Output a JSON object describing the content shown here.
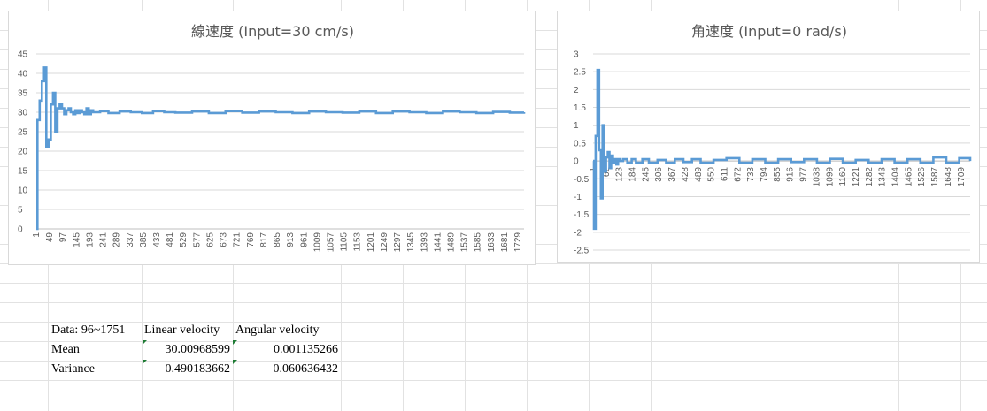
{
  "chart_data": [
    {
      "type": "line",
      "title": "線速度 (Input=30 cm/s)",
      "xlabel": "",
      "ylabel": "",
      "ylim": [
        0,
        45
      ],
      "yticks": [
        0,
        5,
        10,
        15,
        20,
        25,
        30,
        35,
        40,
        45
      ],
      "xlim": [
        1,
        1751
      ],
      "xticks": [
        1,
        49,
        97,
        145,
        193,
        241,
        289,
        337,
        385,
        433,
        481,
        529,
        577,
        625,
        673,
        721,
        769,
        817,
        865,
        913,
        961,
        1009,
        1057,
        1105,
        1153,
        1201,
        1249,
        1297,
        1345,
        1393,
        1441,
        1489,
        1537,
        1585,
        1633,
        1681,
        1729
      ],
      "grid": "horizontal",
      "color": "#5b9bd5",
      "series": [
        {
          "x": [
            1,
            5,
            13,
            21,
            29,
            37,
            45,
            53,
            61,
            69,
            77,
            85,
            93,
            101,
            109,
            117,
            125,
            133,
            141,
            149,
            157,
            165,
            173,
            181,
            189,
            197,
            205,
            230,
            260,
            300,
            340,
            380,
            420,
            460,
            500,
            560,
            620,
            680,
            740,
            800,
            860,
            920,
            980,
            1040,
            1100,
            1160,
            1220,
            1280,
            1340,
            1400,
            1460,
            1520,
            1580,
            1640,
            1700,
            1751
          ],
          "values": [
            0,
            28,
            33,
            38,
            41.5,
            21,
            23,
            32,
            35,
            25,
            31,
            32,
            31,
            29.5,
            30.5,
            31,
            30,
            29.5,
            30.5,
            29.8,
            30.5,
            30,
            29.5,
            31,
            29.5,
            30.5,
            30,
            30.3,
            29.8,
            30.2,
            30,
            29.8,
            30.3,
            30,
            29.9,
            30.2,
            29.8,
            30.3,
            29.9,
            30.2,
            30,
            29.8,
            30.2,
            30,
            29.9,
            30.2,
            29.8,
            30.2,
            30,
            29.8,
            30.2,
            30,
            29.8,
            30.1,
            29.9,
            30
          ]
        }
      ]
    },
    {
      "type": "line",
      "title": "角速度 (Input=0 rad/s)",
      "xlabel": "",
      "ylabel": "",
      "ylim": [
        -2.5,
        3
      ],
      "yticks": [
        -2.5,
        -2,
        -1.5,
        -1,
        -0.5,
        0,
        0.5,
        1,
        1.5,
        2,
        2.5,
        3
      ],
      "xlim": [
        1,
        1751
      ],
      "xticks": [
        1,
        62,
        123,
        184,
        245,
        306,
        367,
        428,
        489,
        550,
        611,
        672,
        733,
        794,
        855,
        916,
        977,
        1038,
        1099,
        1160,
        1221,
        1282,
        1343,
        1404,
        1465,
        1526,
        1587,
        1648,
        1709
      ],
      "grid": "horizontal",
      "color": "#5b9bd5",
      "series": [
        {
          "x": [
            1,
            5,
            13,
            21,
            29,
            37,
            45,
            53,
            61,
            69,
            77,
            85,
            93,
            101,
            109,
            117,
            125,
            140,
            160,
            180,
            200,
            230,
            260,
            300,
            340,
            380,
            420,
            460,
            500,
            560,
            620,
            680,
            740,
            800,
            860,
            920,
            980,
            1040,
            1100,
            1160,
            1220,
            1280,
            1340,
            1400,
            1460,
            1520,
            1580,
            1640,
            1700,
            1751
          ],
          "values": [
            0,
            -1.9,
            0.7,
            2.55,
            0.3,
            -1.05,
            1.0,
            -0.3,
            0.1,
            0.25,
            -0.2,
            0.15,
            -0.05,
            0.05,
            -0.1,
            0.05,
            0,
            0.05,
            -0.05,
            0.05,
            -0.05,
            0.05,
            -0.05,
            0.03,
            -0.05,
            0.05,
            -0.03,
            0.05,
            -0.05,
            0.03,
            0.08,
            -0.05,
            0.05,
            -0.05,
            0.05,
            -0.03,
            0.05,
            -0.05,
            0.06,
            -0.05,
            0.03,
            -0.05,
            0.05,
            -0.05,
            0.05,
            -0.05,
            0.1,
            -0.05,
            0.08,
            0
          ]
        }
      ]
    }
  ],
  "table": {
    "header": [
      "Data: 96~1751",
      "Linear velocity",
      "Angular velocity"
    ],
    "rows": [
      {
        "label": "Mean",
        "linear": "30.00968599",
        "angular": "0.001135266"
      },
      {
        "label": "Variance",
        "linear": "0.490183662",
        "angular": "0.060636432"
      }
    ]
  }
}
